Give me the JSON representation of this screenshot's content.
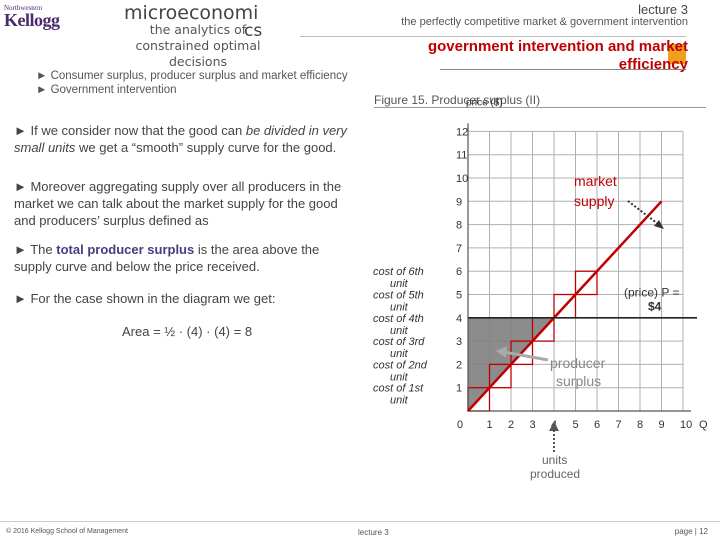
{
  "header": {
    "logo": {
      "top": "Northwestern",
      "main": "Kellogg",
      "sub": ""
    },
    "course_title": "microeconomi",
    "course_sub_lines": [
      "the analytics of",
      "constrained optimal",
      "decisions"
    ],
    "course_overlap": "cs",
    "lecture_label": "lecture 3",
    "section_subtitle": "the perfectly competitive market & government intervention",
    "section_title_lines": [
      "government intervention and market",
      "efficiency"
    ]
  },
  "nav": {
    "items": [
      "► Consumer surplus, producer surplus and market efficiency",
      "► Government intervention"
    ]
  },
  "figure": {
    "caption": "Figure 15. Producer surplus (II)"
  },
  "body": {
    "p1": "► If we consider now that the good can be divided in very small units we get a “smooth” supply curve for the good.",
    "p2": "► Moreover aggregating supply over all producers in the market we can talk about the market supply for the good and producers’ surplus defined as",
    "p3": "► The total producer surplus is the area above the supply curve and below the price received.",
    "p4": "► For the case shown in the diagram we get:",
    "formula": "Area = ½ · (4) · (4) = 8"
  },
  "chart_data": {
    "type": "line",
    "title": "",
    "xlabel": "Q",
    "ylabel": "price ($)",
    "x_ticks": [
      "0",
      "1",
      "2",
      "3",
      "4",
      "5",
      "6",
      "7",
      "8",
      "9",
      "10",
      "Q"
    ],
    "y_ticks": [
      "1",
      "2",
      "3",
      "4",
      "5",
      "6",
      "7",
      "8",
      "9",
      "10",
      "11",
      "12"
    ],
    "xlim": [
      0,
      10
    ],
    "ylim": [
      0,
      12
    ],
    "series": [
      {
        "name": "market supply",
        "x": [
          0,
          9
        ],
        "y": [
          0,
          9
        ],
        "color": "#c00000"
      }
    ],
    "price_line": {
      "value": 4,
      "label_lines": [
        "(price) P =",
        "$4"
      ]
    },
    "unit_steps": [
      {
        "q": 1,
        "cost": 1,
        "label_lines": [
          "cost of 1st",
          "unit"
        ]
      },
      {
        "q": 2,
        "cost": 2,
        "label_lines": [
          "cost of 2nd",
          "unit"
        ]
      },
      {
        "q": 3,
        "cost": 3,
        "label_lines": [
          "cost of 3rd",
          "unit"
        ]
      },
      {
        "q": 4,
        "cost": 4,
        "label_lines": [
          "cost of 4th",
          "unit"
        ]
      },
      {
        "q": 5,
        "cost": 5,
        "label_lines": [
          "cost of 5th",
          "unit"
        ]
      },
      {
        "q": 6,
        "cost": 6,
        "label_lines": [
          "cost of 6th",
          "unit"
        ]
      }
    ],
    "surplus_region": {
      "q_max": 4,
      "price": 4
    },
    "annotations": [
      {
        "id": "market-supply",
        "lines": [
          "market",
          "supply"
        ]
      },
      {
        "id": "producer-surplus",
        "lines": [
          "producer",
          "surplus"
        ]
      },
      {
        "id": "units-produced",
        "lines": [
          "units",
          "produced"
        ]
      }
    ],
    "colors": {
      "supply": "#c00000",
      "grid": "#b0b0b0",
      "surplus": "#808080",
      "arrow": "#aaaaaa"
    }
  },
  "footer": {
    "left": "© 2016 Kellogg School of Management",
    "center": "lecture 3",
    "right": "page | 12"
  }
}
